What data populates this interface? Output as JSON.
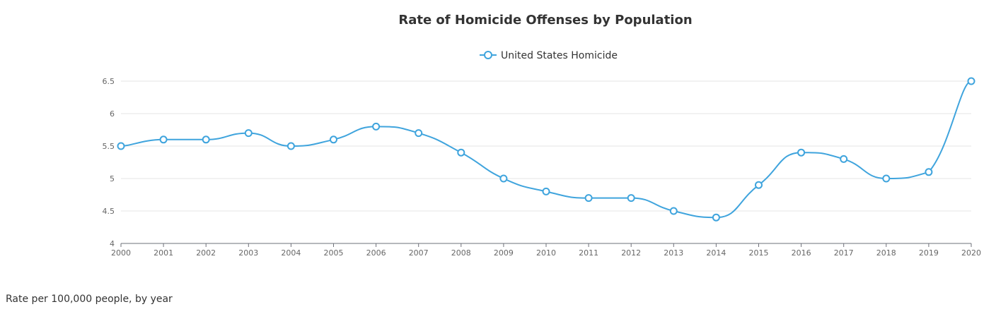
{
  "chart_data": {
    "type": "line",
    "title": "Rate of Homicide Offenses by Population",
    "xlabel": "",
    "ylabel": "",
    "x": [
      "2000",
      "2001",
      "2002",
      "2003",
      "2004",
      "2005",
      "2006",
      "2007",
      "2008",
      "2009",
      "2010",
      "2011",
      "2012",
      "2013",
      "2014",
      "2015",
      "2016",
      "2017",
      "2018",
      "2019",
      "2020"
    ],
    "series": [
      {
        "name": "United States Homicide",
        "values": [
          5.5,
          5.6,
          5.6,
          5.7,
          5.5,
          5.6,
          5.8,
          5.7,
          5.4,
          5.0,
          4.8,
          4.7,
          4.7,
          4.5,
          4.4,
          4.9,
          5.4,
          5.3,
          5.0,
          5.1,
          6.5
        ],
        "color": "#3fa4dd"
      }
    ],
    "ylim": [
      4,
      6.5
    ],
    "yticks": [
      "4",
      "4.5",
      "5",
      "5.5",
      "6",
      "6.5"
    ],
    "grid": "horizontal",
    "legend": "top-center",
    "smooth": true
  },
  "caption": "Rate per 100,000 people, by year"
}
